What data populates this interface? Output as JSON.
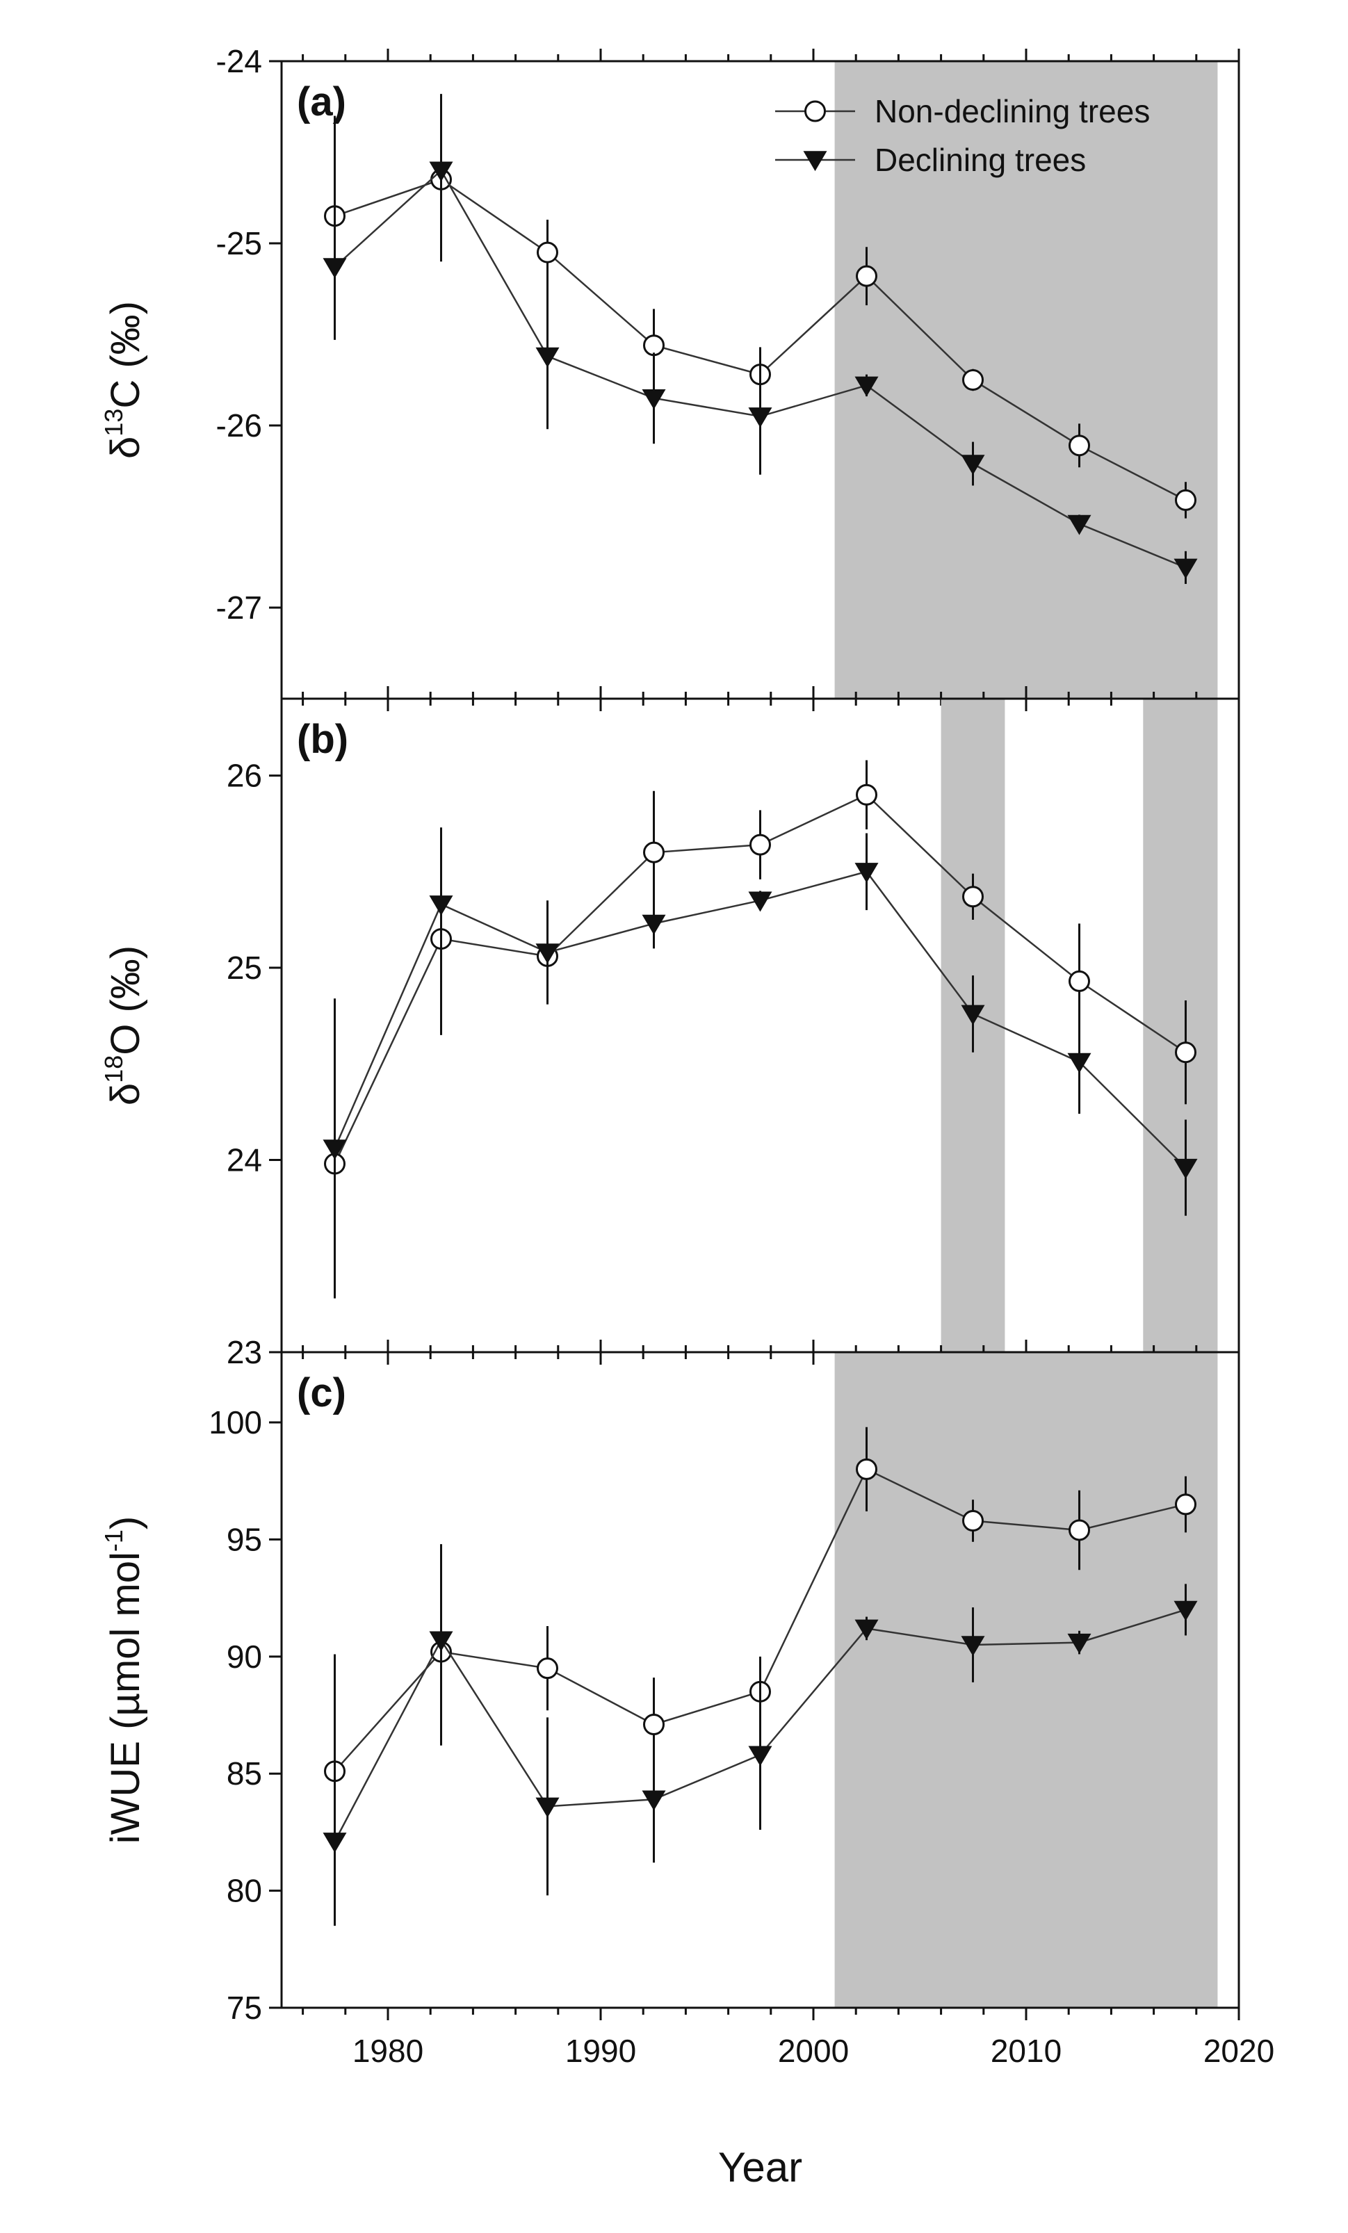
{
  "chart_data": [
    {
      "panel": "(a)",
      "type": "line",
      "ylabel": "δ13C (‰)",
      "ylabel_parts": [
        "δ",
        "13",
        "C (‰)"
      ],
      "ylim": [
        -27.5,
        -24
      ],
      "yticks": [
        -27,
        -26,
        -25,
        -24
      ],
      "xlim": [
        1975,
        2020
      ],
      "shaded_periods": [
        [
          2001,
          2019
        ]
      ],
      "legend": {
        "placement": "top-right",
        "entries": [
          "Non-declining trees",
          "Declining trees"
        ]
      },
      "series": [
        {
          "name": "Non-declining trees",
          "marker": "open-circle",
          "points": [
            {
              "x": 1977.5,
              "y": -24.85,
              "err": 0.55
            },
            {
              "x": 1982.5,
              "y": -24.65,
              "err": 0.45
            },
            {
              "x": 1987.5,
              "y": -25.05,
              "err": 0.18
            },
            {
              "x": 1992.5,
              "y": -25.56,
              "err": 0.2
            },
            {
              "x": 1997.5,
              "y": -25.72,
              "err": 0.15
            },
            {
              "x": 2002.5,
              "y": -25.18,
              "err": 0.16
            },
            {
              "x": 2007.5,
              "y": -25.75,
              "err": 0.06
            },
            {
              "x": 2012.5,
              "y": -26.11,
              "err": 0.12
            },
            {
              "x": 2017.5,
              "y": -26.41,
              "err": 0.1
            }
          ]
        },
        {
          "name": "Declining trees",
          "marker": "filled-triangle-down",
          "points": [
            {
              "x": 1977.5,
              "y": -25.13,
              "err": 0.4
            },
            {
              "x": 1982.5,
              "y": -24.6,
              "err": 0.42
            },
            {
              "x": 1987.5,
              "y": -25.62,
              "err": 0.4
            },
            {
              "x": 1992.5,
              "y": -25.85,
              "err": 0.25
            },
            {
              "x": 1997.5,
              "y": -25.95,
              "err": 0.32
            },
            {
              "x": 2002.5,
              "y": -25.78,
              "err": 0.06
            },
            {
              "x": 2007.5,
              "y": -26.21,
              "err": 0.12
            },
            {
              "x": 2012.5,
              "y": -26.54,
              "err": 0.05
            },
            {
              "x": 2017.5,
              "y": -26.78,
              "err": 0.09
            }
          ]
        }
      ]
    },
    {
      "panel": "(b)",
      "type": "line",
      "ylabel": "δ18O (‰)",
      "ylabel_parts": [
        "δ",
        "18",
        "O (‰)"
      ],
      "ylim": [
        23,
        26.4
      ],
      "yticks": [
        23,
        24,
        25,
        26
      ],
      "xlim": [
        1975,
        2020
      ],
      "shaded_periods": [
        [
          2006,
          2009
        ],
        [
          2015.5,
          2019
        ]
      ],
      "series": [
        {
          "name": "Non-declining trees",
          "marker": "open-circle",
          "points": [
            {
              "x": 1977.5,
              "y": 23.98,
              "err": 0.65
            },
            {
              "x": 1982.5,
              "y": 25.15,
              "err": 0.5
            },
            {
              "x": 1987.5,
              "y": 25.06,
              "err": 0.25
            },
            {
              "x": 1992.5,
              "y": 25.6,
              "err": 0.32
            },
            {
              "x": 1997.5,
              "y": 25.64,
              "err": 0.18
            },
            {
              "x": 2002.5,
              "y": 25.9,
              "err": 0.18
            },
            {
              "x": 2007.5,
              "y": 25.37,
              "err": 0.12
            },
            {
              "x": 2012.5,
              "y": 24.93,
              "err": 0.3
            },
            {
              "x": 2017.5,
              "y": 24.56,
              "err": 0.27
            }
          ]
        },
        {
          "name": "Declining trees",
          "marker": "filled-triangle-down",
          "points": [
            {
              "x": 1977.5,
              "y": 24.06,
              "err": 0.78
            },
            {
              "x": 1982.5,
              "y": 25.33,
              "err": 0.4
            },
            {
              "x": 1987.5,
              "y": 25.08,
              "err": 0.27
            },
            {
              "x": 1992.5,
              "y": 25.23,
              "err": 0.13
            },
            {
              "x": 1997.5,
              "y": 25.35,
              "err": 0.05
            },
            {
              "x": 2002.5,
              "y": 25.5,
              "err": 0.2
            },
            {
              "x": 2007.5,
              "y": 24.76,
              "err": 0.2
            },
            {
              "x": 2012.5,
              "y": 24.51,
              "err": 0.27
            },
            {
              "x": 2017.5,
              "y": 23.96,
              "err": 0.25
            }
          ]
        }
      ]
    },
    {
      "panel": "(c)",
      "type": "line",
      "xlabel": "Year",
      "ylabel": "iWUE (µmol mol-1)",
      "ylabel_parts": [
        "iWUE (µmol mol",
        "-1",
        ")"
      ],
      "ylim": [
        75,
        103
      ],
      "yticks": [
        75,
        80,
        85,
        90,
        95,
        100
      ],
      "xlim": [
        1975,
        2020
      ],
      "xticks": [
        1980,
        1990,
        2000,
        2010,
        2020
      ],
      "shaded_periods": [
        [
          2001,
          2019
        ]
      ],
      "series": [
        {
          "name": "Non-declining trees",
          "marker": "open-circle",
          "points": [
            {
              "x": 1977.5,
              "y": 85.1,
              "err": 5.0
            },
            {
              "x": 1982.5,
              "y": 90.2,
              "err": 4.0
            },
            {
              "x": 1987.5,
              "y": 89.5,
              "err": 1.8
            },
            {
              "x": 1992.5,
              "y": 87.1,
              "err": 2.0
            },
            {
              "x": 1997.5,
              "y": 88.5,
              "err": 1.5
            },
            {
              "x": 2002.5,
              "y": 98.0,
              "err": 1.8
            },
            {
              "x": 2007.5,
              "y": 95.8,
              "err": 0.9
            },
            {
              "x": 2012.5,
              "y": 95.4,
              "err": 1.7
            },
            {
              "x": 2017.5,
              "y": 96.5,
              "err": 1.2
            }
          ]
        },
        {
          "name": "Declining trees",
          "marker": "filled-triangle-down",
          "points": [
            {
              "x": 1977.5,
              "y": 82.1,
              "err": 3.6
            },
            {
              "x": 1982.5,
              "y": 90.7,
              "err": 4.1
            },
            {
              "x": 1987.5,
              "y": 83.6,
              "err": 3.8
            },
            {
              "x": 1992.5,
              "y": 83.9,
              "err": 2.7
            },
            {
              "x": 1997.5,
              "y": 85.8,
              "err": 3.2
            },
            {
              "x": 2002.5,
              "y": 91.2,
              "err": 0.5
            },
            {
              "x": 2007.5,
              "y": 90.5,
              "err": 1.6
            },
            {
              "x": 2012.5,
              "y": 90.6,
              "err": 0.5
            },
            {
              "x": 2017.5,
              "y": 92.0,
              "err": 1.1
            }
          ]
        }
      ]
    }
  ]
}
